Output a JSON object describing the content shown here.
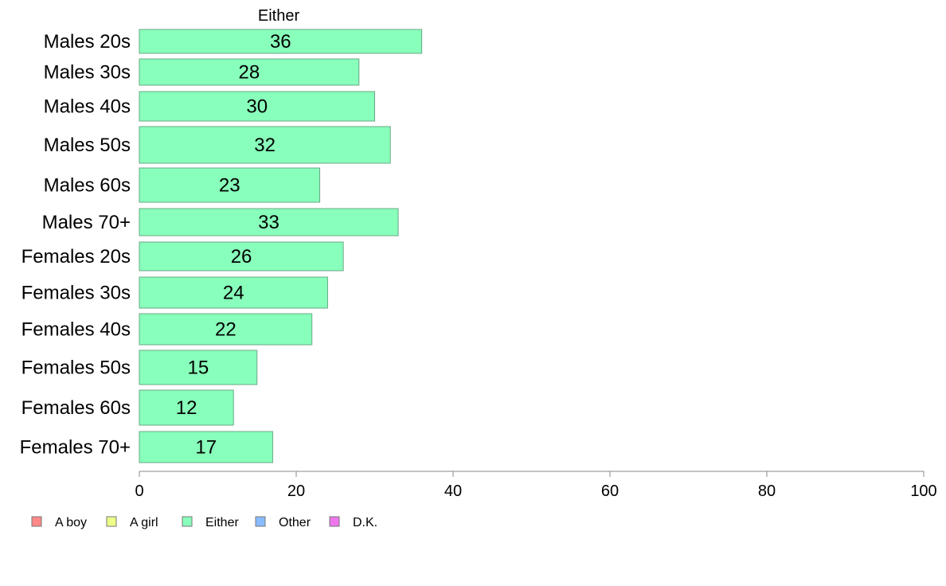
{
  "chart_data": {
    "type": "bar",
    "orientation": "horizontal",
    "panel_title": "Either",
    "categories": [
      "Males 20s",
      "Males 30s",
      "Males 40s",
      "Males 50s",
      "Males 60s",
      "Males 70+",
      "Females 20s",
      "Females 30s",
      "Females 40s",
      "Females 50s",
      "Females 60s",
      "Females 70+"
    ],
    "series": [
      {
        "name": "Either",
        "color": "#88ffbb",
        "values": [
          36,
          28,
          30,
          32,
          23,
          33,
          26,
          24,
          22,
          15,
          12,
          17
        ]
      }
    ],
    "xlim": [
      0,
      100
    ],
    "xticks": [
      0,
      20,
      40,
      60,
      80,
      100
    ],
    "xlabel": "",
    "ylabel": "",
    "grid": false,
    "legend": {
      "position": "bottom-left",
      "entries": [
        {
          "name": "A boy",
          "color": "#ff8888"
        },
        {
          "name": "A girl",
          "color": "#eeff88"
        },
        {
          "name": "Either",
          "color": "#88ffbb"
        },
        {
          "name": "Other",
          "color": "#88bbff"
        },
        {
          "name": "D.K.",
          "color": "#ee77ee"
        }
      ]
    }
  }
}
